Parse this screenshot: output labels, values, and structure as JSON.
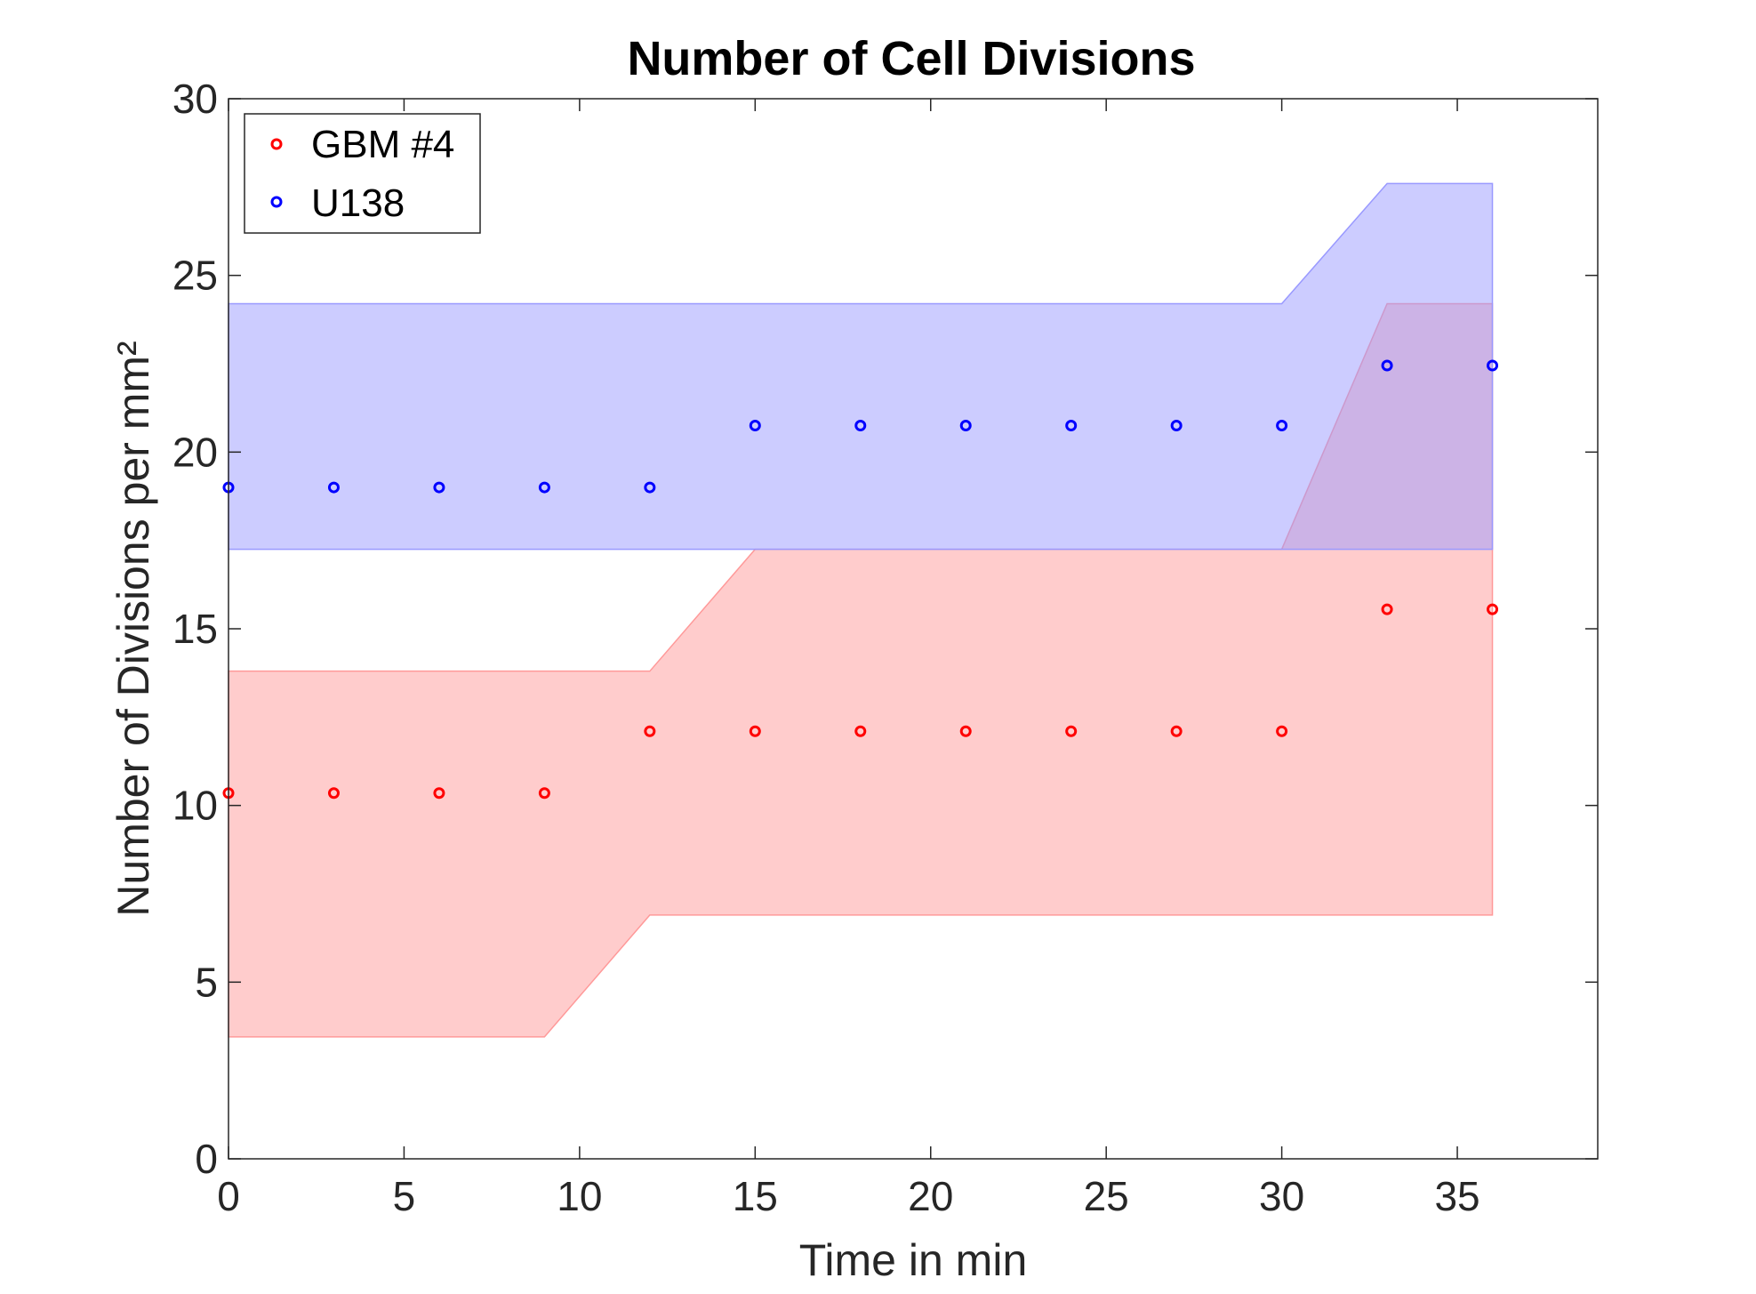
{
  "chart_data": {
    "type": "scatter",
    "title": "Number of Cell Divisions",
    "xlabel": "Time in min",
    "ylabel": "Number of Divisions per mm²",
    "xlim": [
      0,
      39
    ],
    "ylim": [
      0,
      30
    ],
    "xticks": [
      0,
      5,
      10,
      15,
      20,
      25,
      30,
      35
    ],
    "yticks": [
      0,
      5,
      10,
      15,
      20,
      25,
      30
    ],
    "xtick_labels": [
      "0",
      "5",
      "10",
      "15",
      "20",
      "25",
      "30",
      "35"
    ],
    "ytick_labels": [
      "0",
      "5",
      "10",
      "15",
      "20",
      "25",
      "30"
    ],
    "grid": false,
    "legend_position": "top-left",
    "x": [
      0,
      3,
      6,
      9,
      12,
      15,
      18,
      21,
      24,
      27,
      30,
      33,
      36
    ],
    "series": [
      {
        "name": "GBM #4",
        "color": "#ff0000",
        "band_color": "#ff9999",
        "y": [
          10.35,
          10.35,
          10.35,
          10.35,
          12.1,
          12.1,
          12.1,
          12.1,
          12.1,
          12.1,
          12.1,
          15.55,
          15.55
        ],
        "band_lower": [
          3.45,
          3.45,
          3.45,
          3.45,
          6.9,
          6.9,
          6.9,
          6.9,
          6.9,
          6.9,
          6.9,
          6.9,
          6.9
        ],
        "band_upper": [
          13.8,
          13.8,
          13.8,
          13.8,
          13.8,
          17.25,
          17.25,
          17.25,
          17.25,
          17.25,
          17.25,
          24.2,
          24.2
        ]
      },
      {
        "name": "U138",
        "color": "#0000ff",
        "band_color": "#9999ff",
        "y": [
          19.0,
          19.0,
          19.0,
          19.0,
          19.0,
          20.75,
          20.75,
          20.75,
          20.75,
          20.75,
          20.75,
          22.45,
          22.45
        ],
        "band_lower": [
          17.25,
          17.25,
          17.25,
          17.25,
          17.25,
          17.25,
          17.25,
          17.25,
          17.25,
          17.25,
          17.25,
          17.25,
          17.25
        ],
        "band_upper": [
          24.2,
          24.2,
          24.2,
          24.2,
          24.2,
          24.2,
          24.2,
          24.2,
          24.2,
          24.2,
          24.2,
          27.6,
          27.6
        ]
      }
    ]
  }
}
